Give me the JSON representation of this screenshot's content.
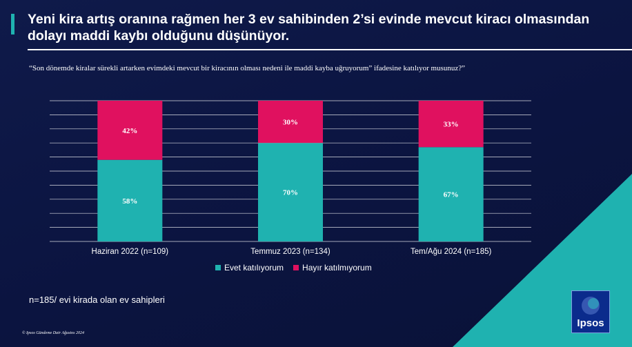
{
  "title": "Yeni kira artış oranına rağmen her 3 ev sahibinden 2’si evinde mevcut kiracı olmasından dolayı maddi kaybı olduğunu düşünüyor.",
  "question": "“Son dönemde kiralar sürekli artarken evimdeki mevcut bir kiracının olması nedeni ile maddi kayba uğruyorum” ifadesine katılıyor musunuz?”",
  "sample_note": "n=185/ evi kirada olan ev sahipleri",
  "footer_note": "© Ipsos Gündeme Dair Ağustos 2024",
  "logo_text": "Ipsos",
  "colors": {
    "agree": "#1fb2b0",
    "disagree": "#e0115f",
    "background": "#0b1440"
  },
  "chart_data": {
    "type": "bar",
    "stacked": true,
    "categories": [
      "Haziran 2022 (n=109)",
      "Temmuz 2023 (n=134)",
      "Tem/Ağu 2024 (n=185)"
    ],
    "series": [
      {
        "name": "Evet katılıyorum",
        "values": [
          58,
          70,
          67
        ],
        "labels": [
          "58%",
          "70%",
          "67%"
        ]
      },
      {
        "name": "Hayır katılmıyorum",
        "values": [
          42,
          30,
          33
        ],
        "labels": [
          "42%",
          "30%",
          "33%"
        ]
      }
    ],
    "ylim": [
      0,
      100
    ],
    "grid": true,
    "legend": "bottom-center"
  }
}
